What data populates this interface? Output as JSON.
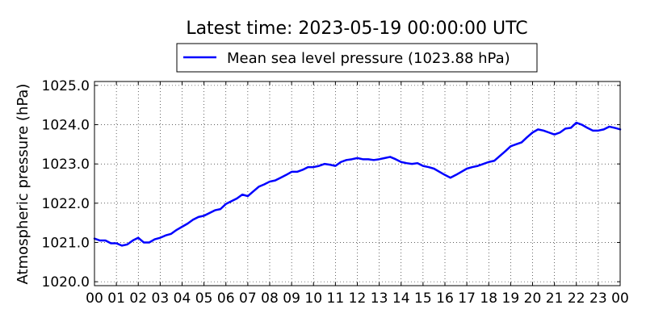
{
  "chart_data": {
    "type": "line",
    "title": "Latest time: 2023-05-19 00:00:00 UTC",
    "xlabel": "",
    "ylabel": "Atmospheric pressure (hPa)",
    "xlim": [
      0,
      24
    ],
    "ylim": [
      1019.9,
      1025.1
    ],
    "grid": true,
    "legend_position": "top-center",
    "x_ticks": [
      0,
      1,
      2,
      3,
      4,
      5,
      6,
      7,
      8,
      9,
      10,
      11,
      12,
      13,
      14,
      15,
      16,
      17,
      18,
      19,
      20,
      21,
      22,
      23,
      24
    ],
    "x_tick_labels": [
      "00",
      "01",
      "02",
      "03",
      "04",
      "05",
      "06",
      "07",
      "08",
      "09",
      "10",
      "11",
      "12",
      "13",
      "14",
      "15",
      "16",
      "17",
      "18",
      "19",
      "20",
      "21",
      "22",
      "23",
      "00"
    ],
    "y_ticks": [
      1020.0,
      1021.0,
      1022.0,
      1023.0,
      1024.0,
      1025.0
    ],
    "y_tick_labels": [
      "1020.0",
      "1021.0",
      "1022.0",
      "1023.0",
      "1024.0",
      "1025.0"
    ],
    "series": [
      {
        "name": "Mean sea level pressure (1023.88 hPa)",
        "color": "#0000ff",
        "x": [
          0,
          0.25,
          0.5,
          0.75,
          1,
          1.25,
          1.5,
          1.75,
          2,
          2.25,
          2.5,
          2.75,
          3,
          3.25,
          3.5,
          3.75,
          4,
          4.25,
          4.5,
          4.75,
          5,
          5.25,
          5.5,
          5.75,
          6,
          6.25,
          6.5,
          6.75,
          7,
          7.25,
          7.5,
          7.75,
          8,
          8.25,
          8.5,
          8.75,
          9,
          9.25,
          9.5,
          9.75,
          10,
          10.25,
          10.5,
          10.75,
          11,
          11.25,
          11.5,
          11.75,
          12,
          12.25,
          12.5,
          12.75,
          13,
          13.25,
          13.5,
          13.75,
          14,
          14.25,
          14.5,
          14.75,
          15,
          15.25,
          15.5,
          15.75,
          16,
          16.25,
          16.5,
          16.75,
          17,
          17.25,
          17.5,
          17.75,
          18,
          18.25,
          18.5,
          18.75,
          19,
          19.25,
          19.5,
          19.75,
          20,
          20.25,
          20.5,
          20.75,
          21,
          21.25,
          21.5,
          21.75,
          22,
          22.25,
          22.5,
          22.75,
          23,
          23.25,
          23.5,
          23.75,
          24
        ],
        "values": [
          1021.1,
          1021.05,
          1021.05,
          1020.98,
          1020.98,
          1020.92,
          1020.95,
          1021.05,
          1021.12,
          1021.0,
          1021.0,
          1021.08,
          1021.12,
          1021.18,
          1021.22,
          1021.32,
          1021.4,
          1021.48,
          1021.58,
          1021.65,
          1021.68,
          1021.75,
          1021.82,
          1021.85,
          1021.98,
          1022.05,
          1022.12,
          1022.22,
          1022.18,
          1022.3,
          1022.42,
          1022.48,
          1022.55,
          1022.58,
          1022.65,
          1022.72,
          1022.8,
          1022.8,
          1022.85,
          1022.92,
          1022.92,
          1022.95,
          1023.0,
          1022.98,
          1022.95,
          1023.05,
          1023.1,
          1023.12,
          1023.15,
          1023.12,
          1023.12,
          1023.1,
          1023.12,
          1023.15,
          1023.18,
          1023.12,
          1023.05,
          1023.02,
          1023.0,
          1023.02,
          1022.95,
          1022.92,
          1022.88,
          1022.8,
          1022.72,
          1022.65,
          1022.72,
          1022.8,
          1022.88,
          1022.92,
          1022.95,
          1023.0,
          1023.05,
          1023.08,
          1023.2,
          1023.32,
          1023.45,
          1023.5,
          1023.55,
          1023.68,
          1023.8,
          1023.88,
          1023.85,
          1023.8,
          1023.75,
          1023.8,
          1023.9,
          1023.92,
          1024.05,
          1024.0,
          1023.92,
          1023.85,
          1023.85,
          1023.88,
          1023.95,
          1023.92,
          1023.88
        ]
      }
    ]
  }
}
